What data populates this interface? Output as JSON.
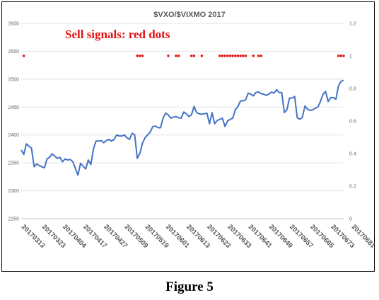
{
  "chart_data": {
    "type": "line",
    "title": "$VXO/$VIXMO 2017",
    "annotation": "Sell signals: red dots",
    "y_left": {
      "ticks": [
        2250,
        2300,
        2350,
        2400,
        2450,
        2500,
        2550,
        2600
      ],
      "ylim": [
        2250,
        2600
      ]
    },
    "y_right": {
      "ticks": [
        "0",
        "0.2",
        "0.4",
        "0.6",
        "0.8",
        "1",
        "1.2"
      ],
      "ylim": [
        0,
        1.2
      ]
    },
    "x_tick_labels": [
      "20170313",
      "20170323",
      "20170404",
      "20170417",
      "20170427",
      "20170509",
      "20170519",
      "20170601",
      "20170613",
      "20170623",
      "20170633",
      "20170641",
      "20170649",
      "20170657",
      "20170665",
      "20170673",
      "20170681"
    ],
    "x_tick_index": [
      0,
      8,
      16,
      24,
      32,
      40,
      48,
      56,
      64,
      72,
      80,
      88,
      96,
      104,
      112,
      120,
      128
    ],
    "series": [
      {
        "color": "#4472c4",
        "axis": "left",
        "values": [
          2373,
          2365,
          2384,
          2380,
          2376,
          2343,
          2348,
          2345,
          2343,
          2341,
          2357,
          2360,
          2366,
          2362,
          2358,
          2360,
          2352,
          2357,
          2355,
          2356,
          2352,
          2340,
          2328,
          2349,
          2344,
          2339,
          2355,
          2347,
          2375,
          2389,
          2389,
          2390,
          2386,
          2390,
          2392,
          2389,
          2392,
          2400,
          2398,
          2398,
          2400,
          2395,
          2392,
          2403,
          2400,
          2358,
          2367,
          2385,
          2395,
          2400,
          2405,
          2415,
          2416,
          2413,
          2413,
          2430,
          2439,
          2436,
          2430,
          2432,
          2433,
          2431,
          2430,
          2441,
          2438,
          2433,
          2436,
          2451,
          2440,
          2438,
          2437,
          2438,
          2439,
          2420,
          2440,
          2420,
          2426,
          2428,
          2430,
          2415,
          2425,
          2428,
          2430,
          2445,
          2451,
          2461,
          2461,
          2463,
          2475,
          2473,
          2470,
          2476,
          2477,
          2474,
          2473,
          2471,
          2473,
          2477,
          2475,
          2481,
          2476,
          2476,
          2440,
          2445,
          2466,
          2466,
          2469,
          2431,
          2428,
          2432,
          2452,
          2446,
          2444,
          2445,
          2448,
          2450,
          2460,
          2473,
          2478,
          2460,
          2467,
          2467,
          2464,
          2488,
          2496,
          2498
        ]
      },
      {
        "color": "#e41010",
        "axis": "right",
        "kind": "points",
        "value": 1,
        "x_index": [
          1,
          45,
          46,
          47,
          57,
          60,
          61,
          66,
          67,
          70,
          77,
          78,
          79,
          80,
          81,
          82,
          83,
          84,
          85,
          86,
          87,
          90,
          92,
          93,
          123,
          124,
          125
        ]
      }
    ]
  },
  "figure": {
    "caption": "Figure 5"
  }
}
